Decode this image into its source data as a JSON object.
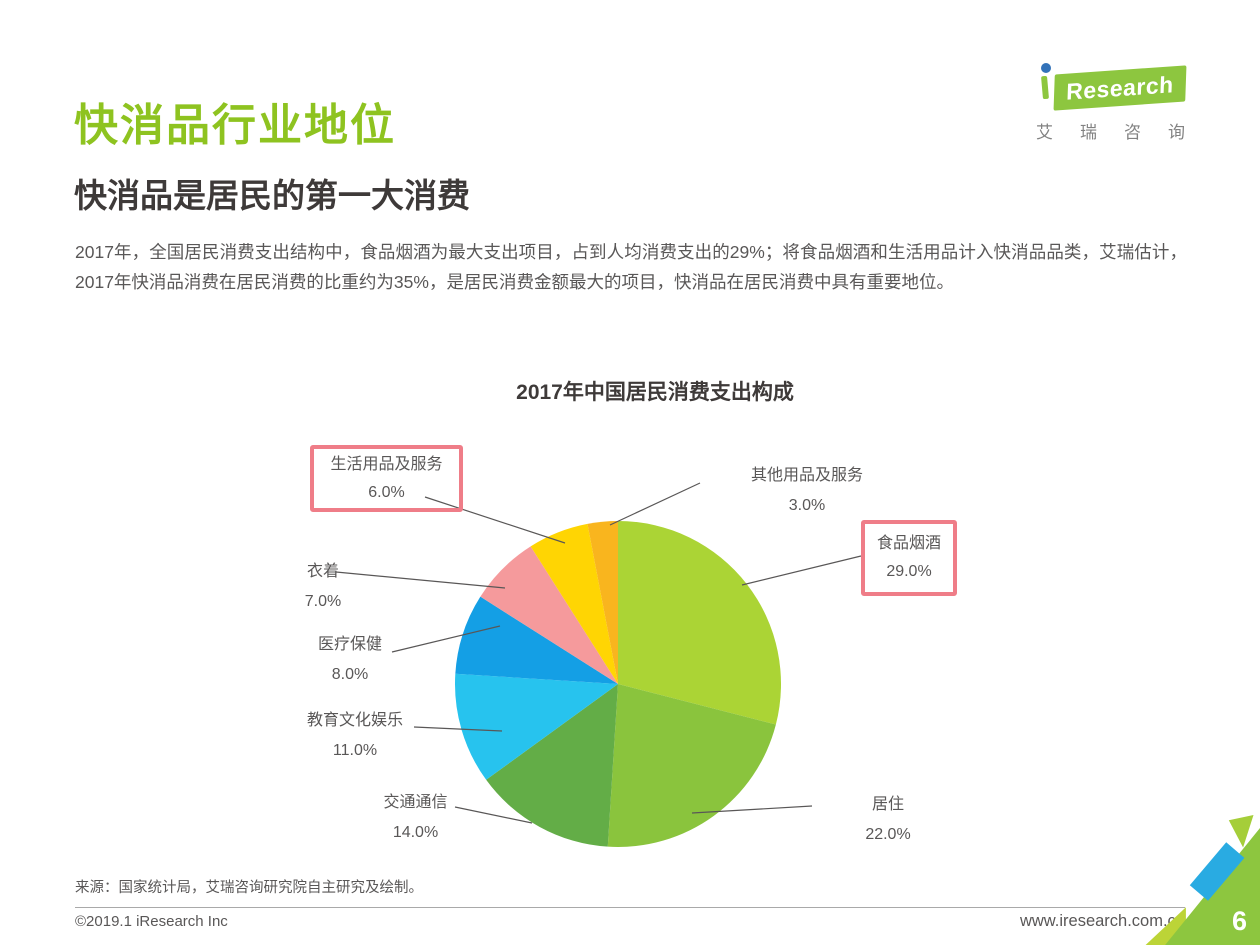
{
  "page": {
    "title": "快消品行业地位",
    "subtitle": "快消品是居民的第一大消费",
    "body": "2017年，全国居民消费支出结构中，食品烟酒为最大支出项目，占到人均消费支出的29%；将食品烟酒和生活用品计入快消品品类，艾瑞估计，2017年快消品消费在居民消费的比重约为35%，是居民消费金额最大的项目，快消品在居民消费中具有重要地位。",
    "page_number": "6"
  },
  "logo": {
    "text_rest": "Research",
    "cn": "艾瑞咨询"
  },
  "footer": {
    "source": "来源：国家统计局，艾瑞咨询研究院自主研究及绘制。",
    "copyright": "©2019.1 iResearch Inc",
    "website": "www.iresearch.com.cn"
  },
  "colors": {
    "accent_green": "#8ec320",
    "logo_green": "#8dc63f",
    "highlight_box": "#ef7d88",
    "leader_line": "#595757",
    "text_gray": "#595757",
    "heading_gray": "#3e3a39",
    "corner_blue": "#29abe2"
  },
  "chart_data": {
    "type": "pie",
    "title": "2017年中国居民消费支出构成",
    "start_angle_deg": 0,
    "direction": "clockwise",
    "legend": "none",
    "label_style": "callout-lines",
    "slices": [
      {
        "name": "food-tobacco-alcohol",
        "label": "食品烟酒",
        "value": 29.0,
        "display": "29.0%",
        "color": "#abd435",
        "highlighted": true
      },
      {
        "name": "housing",
        "label": "居住",
        "value": 22.0,
        "display": "22.0%",
        "color": "#8ac43d",
        "highlighted": false
      },
      {
        "name": "transport-communication",
        "label": "交通通信",
        "value": 14.0,
        "display": "14.0%",
        "color": "#63ad47",
        "highlighted": false
      },
      {
        "name": "education-culture-entertainment",
        "label": "教育文化娱乐",
        "value": 11.0,
        "display": "11.0%",
        "color": "#27c3ee",
        "highlighted": false
      },
      {
        "name": "healthcare",
        "label": "医疗保健",
        "value": 8.0,
        "display": "8.0%",
        "color": "#149fe5",
        "highlighted": false
      },
      {
        "name": "clothing",
        "label": "衣着",
        "value": 7.0,
        "display": "7.0%",
        "color": "#f59a9c",
        "highlighted": false
      },
      {
        "name": "daily-goods-services",
        "label": "生活用品及服务",
        "value": 6.0,
        "display": "6.0%",
        "color": "#ffd503",
        "highlighted": true
      },
      {
        "name": "other-goods-services",
        "label": "其他用品及服务",
        "value": 3.0,
        "display": "3.0%",
        "color": "#f9b51e",
        "highlighted": false
      }
    ]
  }
}
